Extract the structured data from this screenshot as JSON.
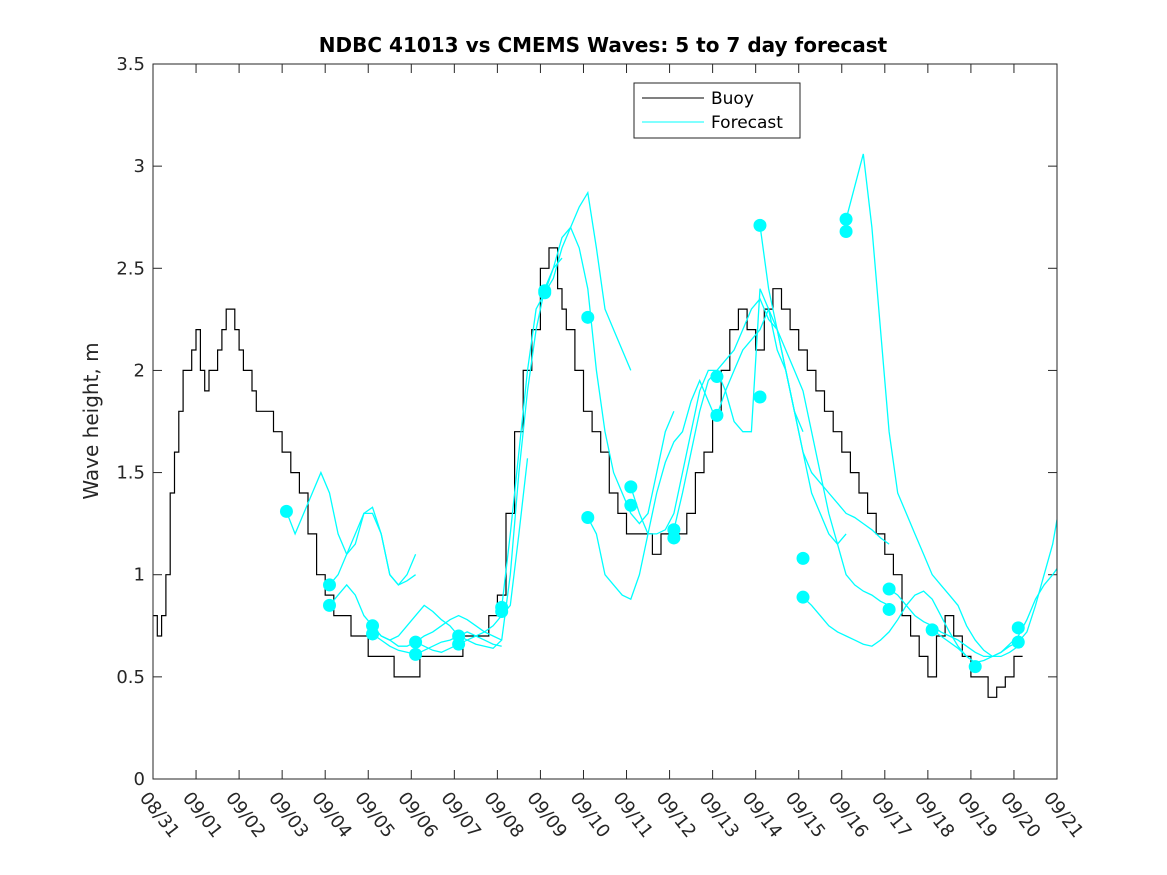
{
  "chart_data": {
    "type": "line",
    "title": "NDBC 41013 vs CMEMS Waves: 5 to 7 day forecast",
    "xlabel": "",
    "ylabel": "Wave height, m",
    "xlim": [
      0,
      21
    ],
    "ylim": [
      0,
      3.5
    ],
    "x_tick_labels": [
      "08/31",
      "09/01",
      "09/02",
      "09/03",
      "09/04",
      "09/05",
      "09/06",
      "09/07",
      "09/08",
      "09/09",
      "09/10",
      "09/11",
      "09/12",
      "09/13",
      "09/14",
      "09/15",
      "09/16",
      "09/17",
      "09/18",
      "09/19",
      "09/20",
      "09/21"
    ],
    "y_tick_labels": [
      "0",
      "0.5",
      "1",
      "1.5",
      "2",
      "2.5",
      "3",
      "3.5"
    ],
    "y_ticks": [
      0,
      0.5,
      1,
      1.5,
      2,
      2.5,
      3,
      3.5
    ],
    "colors": {
      "buoy": "#000000",
      "forecast": "#00ffff"
    },
    "legend": {
      "position": "top-center",
      "entries": [
        "Buoy",
        "Forecast"
      ]
    },
    "buoy": {
      "name": "Buoy",
      "x": [
        0,
        0.1,
        0.2,
        0.3,
        0.4,
        0.5,
        0.6,
        0.7,
        0.8,
        0.9,
        1.0,
        1.1,
        1.2,
        1.3,
        1.4,
        1.5,
        1.6,
        1.7,
        1.8,
        1.9,
        2.0,
        2.1,
        2.2,
        2.3,
        2.4,
        2.6,
        2.8,
        3.0,
        3.2,
        3.4,
        3.6,
        3.8,
        4.0,
        4.2,
        4.4,
        4.6,
        4.8,
        5.0,
        5.2,
        5.4,
        5.6,
        5.8,
        6.0,
        6.2,
        6.4,
        6.6,
        6.8,
        7.0,
        7.2,
        7.4,
        7.6,
        7.8,
        8.0,
        8.2,
        8.4,
        8.6,
        8.8,
        9.0,
        9.1,
        9.2,
        9.3,
        9.4,
        9.5,
        9.6,
        9.8,
        10.0,
        10.2,
        10.4,
        10.6,
        10.8,
        11.0,
        11.2,
        11.4,
        11.6,
        11.8,
        12.0,
        12.2,
        12.4,
        12.6,
        12.8,
        13.0,
        13.2,
        13.4,
        13.6,
        13.8,
        14.0,
        14.2,
        14.4,
        14.6,
        14.8,
        15.0,
        15.2,
        15.4,
        15.6,
        15.8,
        16.0,
        16.2,
        16.4,
        16.6,
        16.8,
        17.0,
        17.2,
        17.4,
        17.6,
        17.8,
        18.0,
        18.2,
        18.4,
        18.6,
        18.8,
        19.0,
        19.2,
        19.4,
        19.6,
        19.8,
        20.0,
        20.2
      ],
      "values": [
        0.8,
        0.7,
        0.8,
        1.0,
        1.4,
        1.6,
        1.8,
        2.0,
        2.0,
        2.1,
        2.2,
        2.0,
        1.9,
        2.0,
        2.0,
        2.1,
        2.2,
        2.3,
        2.3,
        2.2,
        2.1,
        2.0,
        2.0,
        1.9,
        1.8,
        1.8,
        1.7,
        1.6,
        1.5,
        1.4,
        1.2,
        1.0,
        0.9,
        0.8,
        0.8,
        0.7,
        0.7,
        0.6,
        0.6,
        0.6,
        0.5,
        0.5,
        0.5,
        0.6,
        0.6,
        0.6,
        0.6,
        0.6,
        0.7,
        0.7,
        0.7,
        0.8,
        0.9,
        1.3,
        1.7,
        2.0,
        2.2,
        2.5,
        2.5,
        2.6,
        2.6,
        2.4,
        2.3,
        2.2,
        2.0,
        1.8,
        1.7,
        1.6,
        1.4,
        1.3,
        1.2,
        1.2,
        1.2,
        1.1,
        1.2,
        1.2,
        1.2,
        1.3,
        1.5,
        1.6,
        1.8,
        2.0,
        2.2,
        2.3,
        2.2,
        2.1,
        2.3,
        2.4,
        2.3,
        2.2,
        2.1,
        2.0,
        1.9,
        1.8,
        1.7,
        1.6,
        1.5,
        1.4,
        1.3,
        1.2,
        1.1,
        1.0,
        0.8,
        0.7,
        0.6,
        0.5,
        0.7,
        0.8,
        0.7,
        0.6,
        0.5,
        0.5,
        0.4,
        0.45,
        0.5,
        0.6,
        0.6
      ]
    },
    "forecast_series": [
      {
        "x": [
          3.1,
          3.3,
          3.5,
          3.7,
          3.9,
          4.1,
          4.3,
          4.5,
          4.7,
          4.9,
          5.1,
          5.3,
          5.5,
          5.7,
          5.9,
          6.1
        ],
        "values": [
          1.31,
          1.2,
          1.3,
          1.4,
          1.5,
          1.4,
          1.2,
          1.1,
          1.15,
          1.3,
          1.3,
          1.2,
          1.0,
          0.95,
          1.0,
          1.1
        ]
      },
      {
        "x": [
          4.1,
          4.3,
          4.5,
          4.7,
          4.9,
          5.1,
          5.3,
          5.5,
          5.7,
          5.9,
          6.1
        ],
        "values": [
          0.95,
          1.0,
          1.1,
          1.2,
          1.3,
          1.33,
          1.2,
          1.0,
          0.95,
          0.97,
          1.0
        ]
      },
      {
        "x": [
          4.1,
          4.3,
          4.5,
          4.7,
          4.9,
          5.1,
          5.3,
          5.5,
          5.7,
          5.9,
          6.1,
          6.3,
          6.5,
          6.7,
          6.9,
          7.1
        ],
        "values": [
          0.85,
          0.9,
          0.95,
          0.9,
          0.8,
          0.75,
          0.7,
          0.68,
          0.7,
          0.75,
          0.8,
          0.85,
          0.82,
          0.78,
          0.75,
          0.7
        ]
      },
      {
        "x": [
          5.1,
          5.3,
          5.5,
          5.7,
          5.9,
          6.1,
          6.3,
          6.5,
          6.7,
          6.9,
          7.1,
          7.3,
          7.5,
          7.7,
          7.9,
          8.1
        ],
        "values": [
          0.75,
          0.7,
          0.68,
          0.65,
          0.65,
          0.67,
          0.7,
          0.72,
          0.75,
          0.78,
          0.8,
          0.78,
          0.75,
          0.72,
          0.7,
          0.68
        ]
      },
      {
        "x": [
          5.1,
          5.3,
          5.5,
          5.7,
          5.9,
          6.1,
          6.3,
          6.5,
          6.7,
          6.9,
          7.1,
          7.3,
          7.5,
          7.7,
          7.9,
          8.1
        ],
        "values": [
          0.71,
          0.68,
          0.65,
          0.63,
          0.62,
          0.61,
          0.63,
          0.65,
          0.67,
          0.68,
          0.7,
          0.72,
          0.7,
          0.68,
          0.66,
          0.65
        ]
      },
      {
        "x": [
          6.1,
          6.3,
          6.5,
          6.7,
          6.9,
          7.1,
          7.3,
          7.5,
          7.7,
          7.9,
          8.1,
          8.3,
          8.5,
          8.7
        ],
        "values": [
          0.67,
          0.65,
          0.63,
          0.62,
          0.64,
          0.66,
          0.68,
          0.7,
          0.72,
          0.75,
          0.8,
          0.85,
          1.2,
          1.57
        ]
      },
      {
        "x": [
          7.1,
          7.3,
          7.5,
          7.7,
          7.9,
          8.1,
          8.3,
          8.5,
          8.7,
          8.9,
          9.1,
          9.3,
          9.5
        ],
        "values": [
          0.7,
          0.68,
          0.66,
          0.65,
          0.64,
          0.68,
          1.0,
          1.5,
          1.9,
          2.2,
          2.4,
          2.5,
          2.55
        ]
      },
      {
        "x": [
          8.1,
          8.3,
          8.5,
          8.7,
          8.9,
          9.1,
          9.3,
          9.5,
          9.7,
          9.9,
          10.1,
          10.3,
          10.5,
          10.7,
          10.9,
          11.1
        ],
        "values": [
          0.84,
          1.2,
          1.6,
          2.0,
          2.3,
          2.38,
          2.45,
          2.6,
          2.7,
          2.8,
          2.87,
          2.6,
          2.3,
          2.2,
          2.1,
          2.0
        ]
      },
      {
        "x": [
          9.1,
          9.3,
          9.5,
          9.7,
          9.9,
          10.1,
          10.3,
          10.5,
          10.7,
          10.9,
          11.1,
          11.3,
          11.5,
          11.7,
          11.9,
          12.1
        ],
        "values": [
          2.38,
          2.5,
          2.65,
          2.7,
          2.6,
          2.4,
          2.0,
          1.7,
          1.5,
          1.4,
          1.3,
          1.25,
          1.3,
          1.5,
          1.7,
          1.8
        ]
      },
      {
        "x": [
          10.1,
          10.3,
          10.5,
          10.7,
          10.9,
          11.1,
          11.3,
          11.5,
          11.7,
          11.9,
          12.1,
          12.3,
          12.5,
          12.7,
          12.9,
          13.1
        ],
        "values": [
          1.28,
          1.2,
          1.0,
          0.95,
          0.9,
          0.88,
          1.0,
          1.2,
          1.4,
          1.55,
          1.65,
          1.7,
          1.85,
          1.95,
          1.85,
          1.75
        ]
      },
      {
        "x": [
          11.1,
          11.3,
          11.5,
          11.7,
          11.9,
          12.1,
          12.3,
          12.5,
          12.7,
          12.9,
          13.1,
          13.3,
          13.5,
          13.7,
          13.9,
          14.1,
          14.3,
          14.5,
          14.7,
          14.9,
          15.1
        ],
        "values": [
          1.43,
          1.3,
          1.2,
          1.2,
          1.22,
          1.3,
          1.5,
          1.7,
          1.9,
          2.0,
          2.0,
          1.9,
          1.75,
          1.7,
          1.7,
          2.4,
          2.3,
          2.1,
          2.0,
          1.8,
          1.7
        ]
      },
      {
        "x": [
          12.1,
          12.3,
          12.5,
          12.7,
          12.9,
          13.1,
          13.3,
          13.5,
          13.7,
          13.9,
          14.1,
          14.3,
          14.5,
          14.7,
          14.9,
          15.1,
          15.3,
          15.5,
          15.7,
          15.9,
          16.1
        ],
        "values": [
          1.22,
          1.4,
          1.6,
          1.8,
          1.95,
          2.0,
          2.05,
          2.1,
          2.2,
          2.3,
          2.35,
          2.25,
          2.2,
          2.0,
          1.8,
          1.6,
          1.4,
          1.3,
          1.2,
          1.15,
          1.2
        ]
      },
      {
        "x": [
          13.1,
          13.3,
          13.5,
          13.7,
          13.9,
          14.1,
          14.3,
          14.5,
          14.7,
          14.9,
          15.1,
          15.3,
          15.5,
          15.7,
          15.9,
          16.1,
          16.3,
          16.5,
          16.7,
          16.9,
          17.1
        ],
        "values": [
          1.78,
          1.9,
          2.0,
          2.1,
          2.15,
          2.2,
          2.3,
          2.2,
          2.1,
          2.0,
          1.9,
          1.7,
          1.5,
          1.3,
          1.15,
          1.0,
          0.95,
          0.92,
          0.9,
          0.87,
          0.85
        ]
      },
      {
        "x": [
          14.1,
          14.3,
          14.5,
          14.7,
          14.9,
          15.1,
          15.3,
          15.5,
          15.7,
          15.9,
          16.1,
          16.3,
          16.5,
          16.7,
          16.9,
          17.1
        ],
        "values": [
          2.71,
          2.4,
          2.2,
          2.0,
          1.8,
          1.6,
          1.5,
          1.45,
          1.4,
          1.35,
          1.3,
          1.28,
          1.25,
          1.22,
          1.18,
          1.15
        ]
      },
      {
        "x": [
          15.1,
          15.3,
          15.5,
          15.7,
          15.9,
          16.1,
          16.3,
          16.5,
          16.7,
          16.9,
          17.1,
          17.3,
          17.5,
          17.7,
          17.9,
          18.1,
          18.3,
          18.5,
          18.7,
          18.9,
          19.1
        ],
        "values": [
          0.89,
          0.85,
          0.8,
          0.75,
          0.72,
          0.7,
          0.68,
          0.66,
          0.65,
          0.68,
          0.72,
          0.78,
          0.85,
          0.9,
          0.92,
          0.88,
          0.8,
          0.72,
          0.65,
          0.6,
          0.57
        ]
      },
      {
        "x": [
          16.1,
          16.3,
          16.5,
          16.7,
          16.9,
          17.1,
          17.3,
          17.5,
          17.7,
          17.9,
          18.1,
          18.3,
          18.5,
          18.7,
          18.9,
          19.1,
          19.3,
          19.5,
          19.7,
          19.9,
          20.1
        ],
        "values": [
          2.74,
          2.9,
          3.06,
          2.7,
          2.2,
          1.7,
          1.4,
          1.3,
          1.2,
          1.1,
          1.0,
          0.95,
          0.9,
          0.85,
          0.75,
          0.68,
          0.63,
          0.6,
          0.6,
          0.62,
          0.65
        ]
      },
      {
        "x": [
          17.1,
          17.3,
          17.5,
          17.7,
          17.9,
          18.1,
          18.3,
          18.5,
          18.7,
          18.9,
          19.1,
          19.3,
          19.5,
          19.7,
          19.9,
          20.1,
          20.3,
          20.5,
          20.7,
          20.9,
          21.0
        ],
        "values": [
          0.93,
          0.9,
          0.85,
          0.8,
          0.77,
          0.75,
          0.72,
          0.7,
          0.68,
          0.65,
          0.62,
          0.6,
          0.6,
          0.62,
          0.65,
          0.67,
          0.72,
          0.85,
          1.0,
          1.15,
          1.27
        ]
      },
      {
        "x": [
          18.1,
          18.3,
          18.5,
          18.7,
          18.9,
          19.1,
          19.3,
          19.5,
          19.7,
          19.9,
          20.1,
          20.3,
          20.5,
          20.7,
          20.9,
          21.0
        ],
        "values": [
          0.73,
          0.7,
          0.67,
          0.64,
          0.6,
          0.57,
          0.58,
          0.6,
          0.62,
          0.66,
          0.7,
          0.78,
          0.88,
          0.95,
          1.0,
          1.03
        ]
      }
    ],
    "forecast_dots": {
      "x": [
        3.1,
        4.1,
        4.1,
        5.1,
        5.1,
        6.1,
        6.1,
        7.1,
        7.1,
        8.1,
        8.1,
        9.1,
        9.1,
        10.1,
        10.1,
        11.1,
        11.1,
        12.1,
        12.1,
        13.1,
        13.1,
        14.1,
        14.1,
        15.1,
        15.1,
        16.1,
        16.1,
        17.1,
        17.1,
        18.1,
        19.1,
        20.1,
        20.1
      ],
      "values": [
        1.31,
        0.95,
        0.85,
        0.75,
        0.71,
        0.67,
        0.61,
        0.7,
        0.66,
        0.84,
        0.82,
        2.38,
        2.39,
        2.26,
        1.28,
        1.43,
        1.34,
        1.22,
        1.18,
        1.97,
        1.78,
        2.71,
        1.87,
        1.08,
        0.89,
        2.74,
        2.68,
        0.93,
        0.83,
        0.73,
        0.55,
        0.74,
        0.67
      ]
    }
  }
}
